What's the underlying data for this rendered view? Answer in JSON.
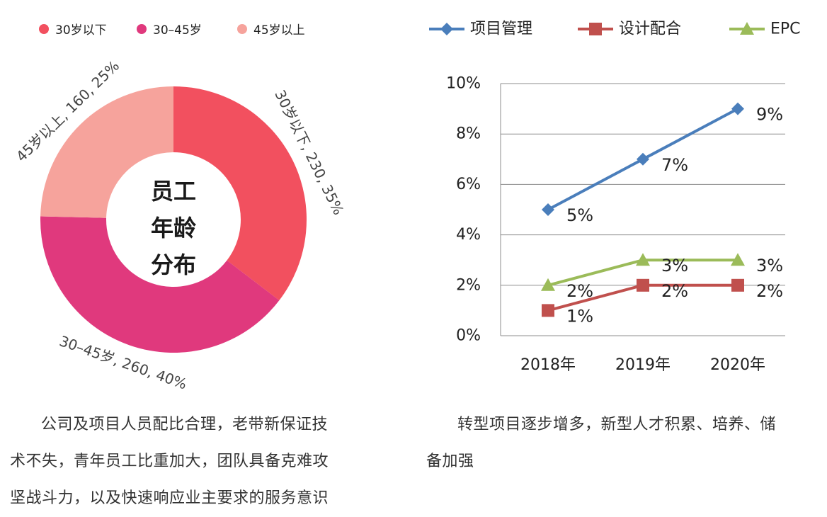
{
  "donut": {
    "center_title": [
      "员工",
      "年龄",
      "分布"
    ],
    "colors": [
      "#f2505f",
      "#e0397d",
      "#f6a39c"
    ]
  },
  "line": {
    "colors": [
      "#4a7ebb",
      "#c0504d",
      "#9bbb59"
    ]
  },
  "captions": {
    "left": [
      "公司及项目人员配比合理，老带新保证技",
      "术不失，青年员工比重加大，团队具备克难攻",
      "坚战斗力，以及快速响应业主要求的服务意识"
    ],
    "right": [
      "转型项目逐步增多，新型人才积累、培养、储",
      "备加强"
    ]
  },
  "chart_data": [
    {
      "type": "pie",
      "categories": [
        "30岁以下",
        "30–45岁",
        "45岁以上"
      ],
      "values": [
        230,
        260,
        160
      ],
      "percents": [
        35,
        40,
        25
      ],
      "data_labels": [
        "30岁以下, 230, 35%",
        "30–45岁, 260, 40%",
        "45岁以上, 160, 25%"
      ],
      "legend": [
        "30岁以下",
        "30–45岁",
        "45岁以上"
      ],
      "legend_position": "top"
    },
    {
      "type": "line",
      "categories": [
        "2018年",
        "2019年",
        "2020年"
      ],
      "series": [
        {
          "name": "项目管理",
          "values": [
            5,
            7,
            9
          ],
          "labels": [
            "5%",
            "7%",
            "9%"
          ],
          "marker": "diamond"
        },
        {
          "name": "设计配合",
          "values": [
            1,
            2,
            2
          ],
          "labels": [
            "1%",
            "2%",
            "2%"
          ],
          "marker": "square"
        },
        {
          "name": "EPC",
          "values": [
            2,
            3,
            3
          ],
          "labels": [
            "2%",
            "3%",
            "3%"
          ],
          "marker": "triangle"
        }
      ],
      "ylim": [
        0,
        10
      ],
      "yticks": [
        "0%",
        "2%",
        "4%",
        "6%",
        "8%",
        "10%"
      ],
      "ytick_values": [
        0,
        2,
        4,
        6,
        8,
        10
      ],
      "grid": true,
      "legend_position": "top"
    }
  ]
}
